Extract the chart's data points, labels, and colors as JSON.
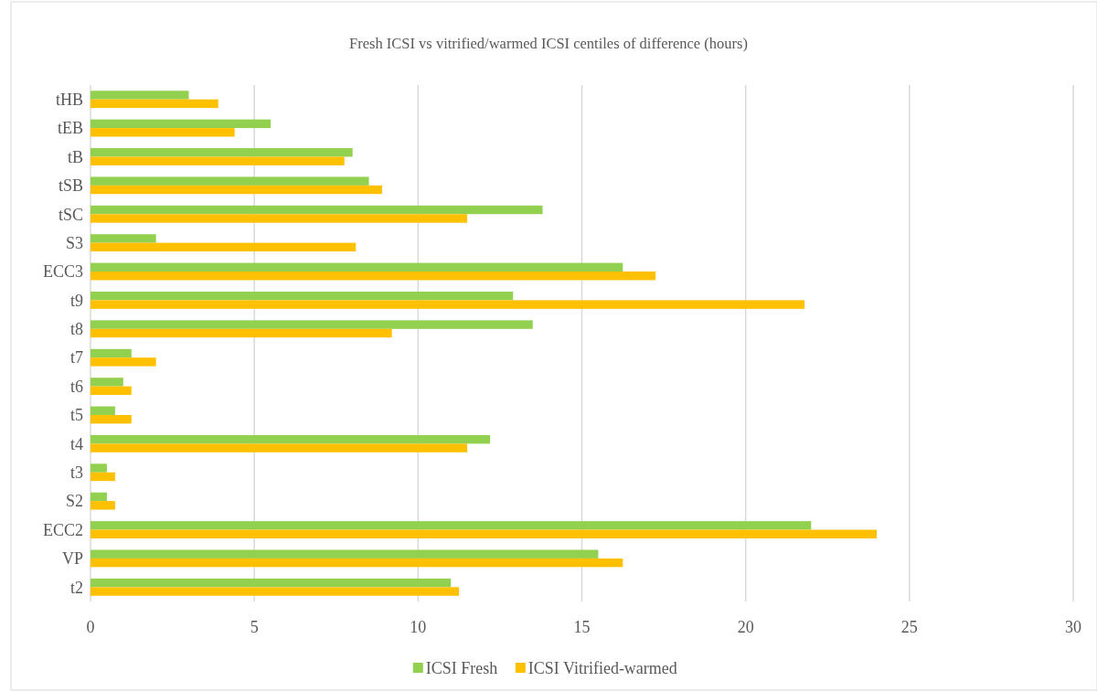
{
  "chart_data": {
    "type": "bar",
    "orientation": "horizontal",
    "title": "Fresh ICSI vs vitrified/warmed ICSI centiles of difference (hours)",
    "categories": [
      "tHB",
      "tEB",
      "tB",
      "tSB",
      "tSC",
      "S3",
      "ECC3",
      "t9",
      "t8",
      "t7",
      "t6",
      "t5",
      "t4",
      "t3",
      "S2",
      "ECC2",
      "VP",
      "t2"
    ],
    "series": [
      {
        "name": "ICSI Fresh",
        "color": "#92d050",
        "values": [
          3.0,
          5.5,
          8.0,
          8.5,
          13.8,
          2.0,
          16.25,
          12.9,
          13.5,
          1.25,
          1.0,
          0.75,
          12.2,
          0.5,
          0.5,
          22.0,
          15.5,
          11.0
        ]
      },
      {
        "name": "ICSI Vitrified-warmed",
        "color": "#ffc000",
        "values": [
          3.9,
          4.4,
          7.75,
          8.9,
          11.5,
          8.1,
          17.25,
          21.8,
          9.2,
          2.0,
          1.25,
          1.25,
          11.5,
          0.75,
          0.75,
          24.0,
          16.25,
          11.25
        ]
      }
    ],
    "xlim": [
      0,
      30
    ],
    "xticks": [
      0,
      5,
      10,
      15,
      20,
      25,
      30
    ],
    "grid": "x",
    "legend": "bottom"
  }
}
